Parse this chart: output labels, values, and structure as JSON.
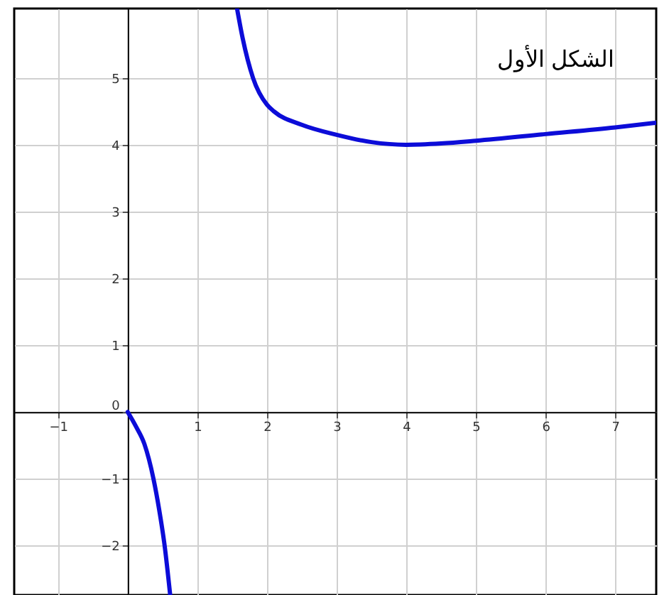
{
  "chart_data": {
    "type": "line",
    "title": "الشكل الأول",
    "x": [
      0,
      0.12,
      0.24,
      0.37,
      0.45,
      0.53,
      0.61,
      0.9,
      1.57,
      1.65,
      1.8,
      2.0,
      2.1,
      2.5,
      3,
      3.5,
      4,
      4.5,
      5,
      6,
      7,
      7.59
    ],
    "series": [
      {
        "color": "#0c0cd8",
        "values": [
          0,
          -0.22,
          -0.48,
          -1.0,
          -1.45,
          -2.0,
          -2.74,
          null,
          6.04,
          5.6,
          5.0,
          4.6,
          4.5,
          4.3,
          4.15,
          4.04,
          4.0,
          4.02,
          4.06,
          4.16,
          4.26,
          4.33
        ]
      }
    ],
    "xlim": [
      -1.63,
      7.59
    ],
    "ylim": [
      -2.74,
      6.04
    ],
    "xticks": [
      -1,
      {
        "value": 0,
        "label": null
      },
      1,
      2,
      3,
      4,
      5,
      6,
      7
    ],
    "yticks": [
      -2,
      -1,
      0,
      1,
      2,
      3,
      4,
      5
    ],
    "grid": true,
    "marker": "none",
    "line_style": "solid"
  }
}
